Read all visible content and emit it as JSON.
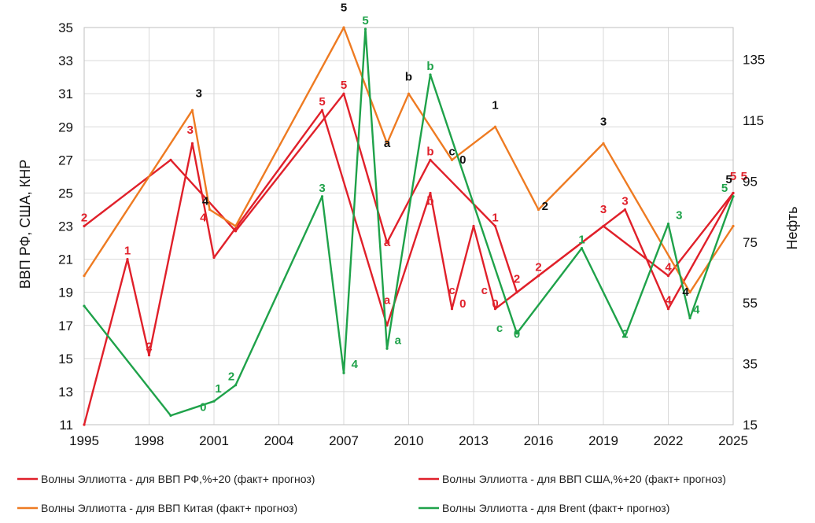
{
  "chart_data": {
    "type": "line",
    "x_ticks": [
      "1995",
      "1998",
      "2001",
      "2004",
      "2007",
      "2010",
      "2013",
      "2016",
      "2019",
      "2022",
      "2025"
    ],
    "y_left": {
      "label": "ВВП РФ, США, КНР",
      "ticks": [
        11,
        13,
        15,
        17,
        19,
        21,
        23,
        25,
        27,
        29,
        31,
        33,
        35
      ],
      "range": [
        11,
        35
      ]
    },
    "y_right": {
      "label": "Нефть",
      "ticks": [
        15,
        35,
        55,
        75,
        95,
        115,
        135
      ],
      "range": [
        15,
        145.5
      ]
    },
    "xlim": [
      1995,
      2025
    ],
    "grid": true,
    "legend_position": "bottom",
    "series": [
      {
        "name": "Волны Эллиотта - для ВВП РФ,%+20 (факт+ прогноз)",
        "color": "#e0202a",
        "axis": "left",
        "points": [
          [
            1995,
            11
          ],
          [
            1997,
            21
          ],
          [
            1998,
            15.2
          ],
          [
            2000,
            28
          ],
          [
            2001,
            21.1
          ],
          [
            2006,
            30
          ],
          [
            2009,
            17
          ],
          [
            2011,
            25
          ],
          [
            2012,
            18
          ],
          [
            2013,
            23
          ],
          [
            2014,
            18
          ],
          [
            2015,
            19
          ],
          [
            2016,
            20
          ],
          [
            2020,
            24
          ],
          [
            2022,
            18
          ],
          [
            2025,
            25
          ]
        ],
        "labels": [
          {
            "x": 1995,
            "y": 23,
            "t": "2"
          },
          {
            "x": 1997,
            "y": 21,
            "t": "1"
          },
          {
            "x": 1998,
            "y": 15.2,
            "t": "2"
          },
          {
            "x": 1999.9,
            "y": 28.3,
            "t": "3"
          },
          {
            "x": 2000.5,
            "y": 23,
            "t": "4"
          },
          {
            "x": 2006,
            "y": 30,
            "t": "5"
          },
          {
            "x": 2009,
            "y": 21.5,
            "t": "a"
          },
          {
            "x": 2011,
            "y": 27,
            "t": "b"
          },
          {
            "x": 2011,
            "y": 24,
            "t": "b"
          },
          {
            "x": 2012,
            "y": 18.6,
            "t": "c"
          },
          {
            "x": 2012.5,
            "y": 17.8,
            "t": "0"
          },
          {
            "x": 2013.5,
            "y": 18.6,
            "t": "c"
          },
          {
            "x": 2014,
            "y": 17.8,
            "t": "0"
          },
          {
            "x": 2015,
            "y": 19.3,
            "t": "2"
          },
          {
            "x": 2016,
            "y": 20,
            "t": "2"
          },
          {
            "x": 2019,
            "y": 23.5,
            "t": "3"
          },
          {
            "x": 2020,
            "y": 24,
            "t": "3"
          },
          {
            "x": 2022,
            "y": 20,
            "t": "4"
          },
          {
            "x": 2022,
            "y": 18,
            "t": "4"
          },
          {
            "x": 2025,
            "y": 25.5,
            "t": "5"
          }
        ]
      },
      {
        "name": "Волны Эллиотта - для ВВП США,%+20 (факт+ прогноз)",
        "color": "#e0202a",
        "axis": "left",
        "points": [
          [
            1995,
            23
          ],
          [
            1999,
            27
          ],
          [
            2002,
            22.7
          ],
          [
            2007,
            31
          ],
          [
            2009,
            22
          ],
          [
            2011,
            27
          ],
          [
            2014,
            23
          ],
          [
            2015,
            19
          ],
          [
            2019,
            23
          ],
          [
            2022,
            20
          ],
          [
            2025,
            25
          ]
        ],
        "labels": [
          {
            "x": 2007,
            "y": 31,
            "t": "5"
          },
          {
            "x": 2009,
            "y": 18,
            "t": "a"
          },
          {
            "x": 2014,
            "y": 23,
            "t": "1"
          },
          {
            "x": 2025.5,
            "y": 25.5,
            "t": "5"
          }
        ]
      },
      {
        "name": "Волны Эллиотта - для ВВП Китая (факт+ прогноз)",
        "color": "#ee7b22",
        "axis": "left",
        "points": [
          [
            1995,
            20
          ],
          [
            2000,
            30
          ],
          [
            2000.8,
            24
          ],
          [
            2002,
            23
          ],
          [
            2007,
            35
          ],
          [
            2009,
            28
          ],
          [
            2010,
            31
          ],
          [
            2012,
            27
          ],
          [
            2014,
            29
          ],
          [
            2016,
            24
          ],
          [
            2019,
            28
          ],
          [
            2023,
            19
          ],
          [
            2025,
            23
          ]
        ],
        "labels": [
          {
            "x": 2000.3,
            "y": 30.5,
            "t": "3"
          },
          {
            "x": 2000.6,
            "y": 24,
            "t": "4"
          },
          {
            "x": 2007,
            "y": 35.7,
            "t": "5"
          },
          {
            "x": 2009,
            "y": 27.5,
            "t": "a"
          },
          {
            "x": 2010,
            "y": 31.5,
            "t": "b"
          },
          {
            "x": 2012,
            "y": 27,
            "t": "c"
          },
          {
            "x": 2012.5,
            "y": 26.5,
            "t": "0"
          },
          {
            "x": 2014,
            "y": 29.8,
            "t": "1"
          },
          {
            "x": 2016.3,
            "y": 23.7,
            "t": "2"
          },
          {
            "x": 2019,
            "y": 28.8,
            "t": "3"
          },
          {
            "x": 2022.8,
            "y": 18.5,
            "t": "4"
          },
          {
            "x": 2024.8,
            "y": 25.3,
            "t": "5"
          }
        ]
      },
      {
        "name": "Волны Эллиотта - для Brent (факт+ прогноз)",
        "color": "#1fa24a",
        "axis": "right",
        "points": [
          [
            1995,
            54
          ],
          [
            1999,
            18
          ],
          [
            2001,
            22.7
          ],
          [
            2002,
            28
          ],
          [
            2006,
            90
          ],
          [
            2007,
            32
          ],
          [
            2008,
            145
          ],
          [
            2009,
            40
          ],
          [
            2011,
            130
          ],
          [
            2015,
            45
          ],
          [
            2018,
            73
          ],
          [
            2020,
            44
          ],
          [
            2022,
            81
          ],
          [
            2023,
            50
          ],
          [
            2025,
            90
          ]
        ],
        "labels": [
          {
            "x": 2000.5,
            "y": 18,
            "t": "0"
          },
          {
            "x": 2001.2,
            "y": 24,
            "t": "1"
          },
          {
            "x": 2001.8,
            "y": 28,
            "t": "2"
          },
          {
            "x": 2006,
            "y": 90,
            "t": "3"
          },
          {
            "x": 2007.5,
            "y": 32,
            "t": "4"
          },
          {
            "x": 2008,
            "y": 145,
            "t": "5"
          },
          {
            "x": 2009.5,
            "y": 40,
            "t": "a"
          },
          {
            "x": 2011,
            "y": 130,
            "t": "b"
          },
          {
            "x": 2014.2,
            "y": 44,
            "t": "c"
          },
          {
            "x": 2015,
            "y": 42,
            "t": "0"
          },
          {
            "x": 2018,
            "y": 73,
            "t": "1"
          },
          {
            "x": 2020,
            "y": 42,
            "t": "2"
          },
          {
            "x": 2022.5,
            "y": 81,
            "t": "3"
          },
          {
            "x": 2023.3,
            "y": 50,
            "t": "4"
          },
          {
            "x": 2024.6,
            "y": 90,
            "t": "5"
          }
        ]
      }
    ]
  }
}
